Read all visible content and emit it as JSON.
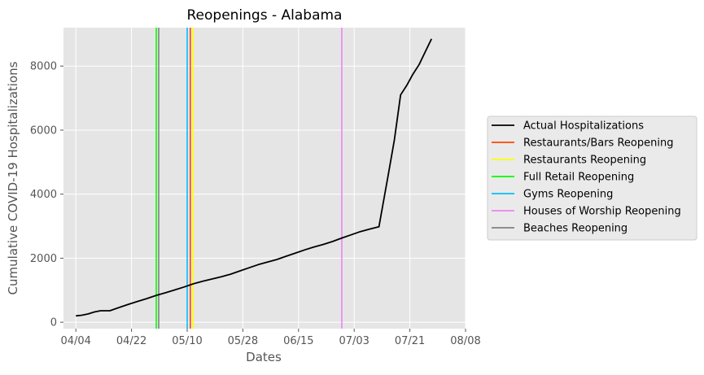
{
  "chart_data": {
    "type": "line",
    "title": "Reopenings - Alabama",
    "xlabel": "Dates",
    "ylabel": "Cumulative COVID-19 Hospitalizations",
    "x_ticks": [
      "04/04",
      "04/22",
      "05/10",
      "05/28",
      "06/15",
      "07/03",
      "07/21",
      "08/08"
    ],
    "y_ticks": [
      "0",
      "2000",
      "4000",
      "6000",
      "8000"
    ],
    "xlim": [
      "2020-03-31",
      "2020-08-08"
    ],
    "ylim": [
      -200,
      9200
    ],
    "grid": true,
    "legend_position": "center-right, outside plot",
    "series": [
      {
        "name": "Actual Hospitalizations",
        "color": "#000000",
        "x": [
          "2020-04-04",
          "2020-04-06",
          "2020-04-08",
          "2020-04-10",
          "2020-04-12",
          "2020-04-15",
          "2020-04-18",
          "2020-04-21",
          "2020-04-24",
          "2020-04-27",
          "2020-04-30",
          "2020-05-03",
          "2020-05-06",
          "2020-05-09",
          "2020-05-12",
          "2020-05-15",
          "2020-05-18",
          "2020-05-21",
          "2020-05-24",
          "2020-05-27",
          "2020-05-30",
          "2020-06-02",
          "2020-06-05",
          "2020-06-08",
          "2020-06-11",
          "2020-06-14",
          "2020-06-17",
          "2020-06-20",
          "2020-06-23",
          "2020-06-26",
          "2020-06-29",
          "2020-07-02",
          "2020-07-05",
          "2020-07-08",
          "2020-07-11",
          "2020-07-14",
          "2020-07-16",
          "2020-07-18",
          "2020-07-20",
          "2020-07-22",
          "2020-07-24",
          "2020-07-26",
          "2020-07-28"
        ],
        "y": [
          200,
          220,
          260,
          320,
          360,
          360,
          460,
          560,
          650,
          740,
          840,
          920,
          1010,
          1100,
          1200,
          1280,
          1350,
          1420,
          1500,
          1600,
          1700,
          1800,
          1880,
          1960,
          2060,
          2160,
          2260,
          2350,
          2430,
          2520,
          2630,
          2730,
          2830,
          2910,
          2980,
          4600,
          5700,
          7100,
          7400,
          7750,
          8050,
          8450,
          8850
        ]
      }
    ],
    "reopening_lines": [
      {
        "name": "Restaurants/Bars Reopening",
        "color": "#ff4500",
        "date": "2020-05-11"
      },
      {
        "name": "Restaurants Reopening",
        "color": "#ffff00",
        "date": "2020-05-11"
      },
      {
        "name": "Full Retail Reopening",
        "color": "#00ff00",
        "date": "2020-04-30"
      },
      {
        "name": "Gyms Reopening",
        "color": "#00bfff",
        "date": "2020-05-10"
      },
      {
        "name": "Houses of Worship Reopening",
        "color": "#ee82ee",
        "date": "2020-06-29"
      },
      {
        "name": "Beaches Reopening",
        "color": "#808080",
        "date": "2020-04-30"
      }
    ]
  }
}
